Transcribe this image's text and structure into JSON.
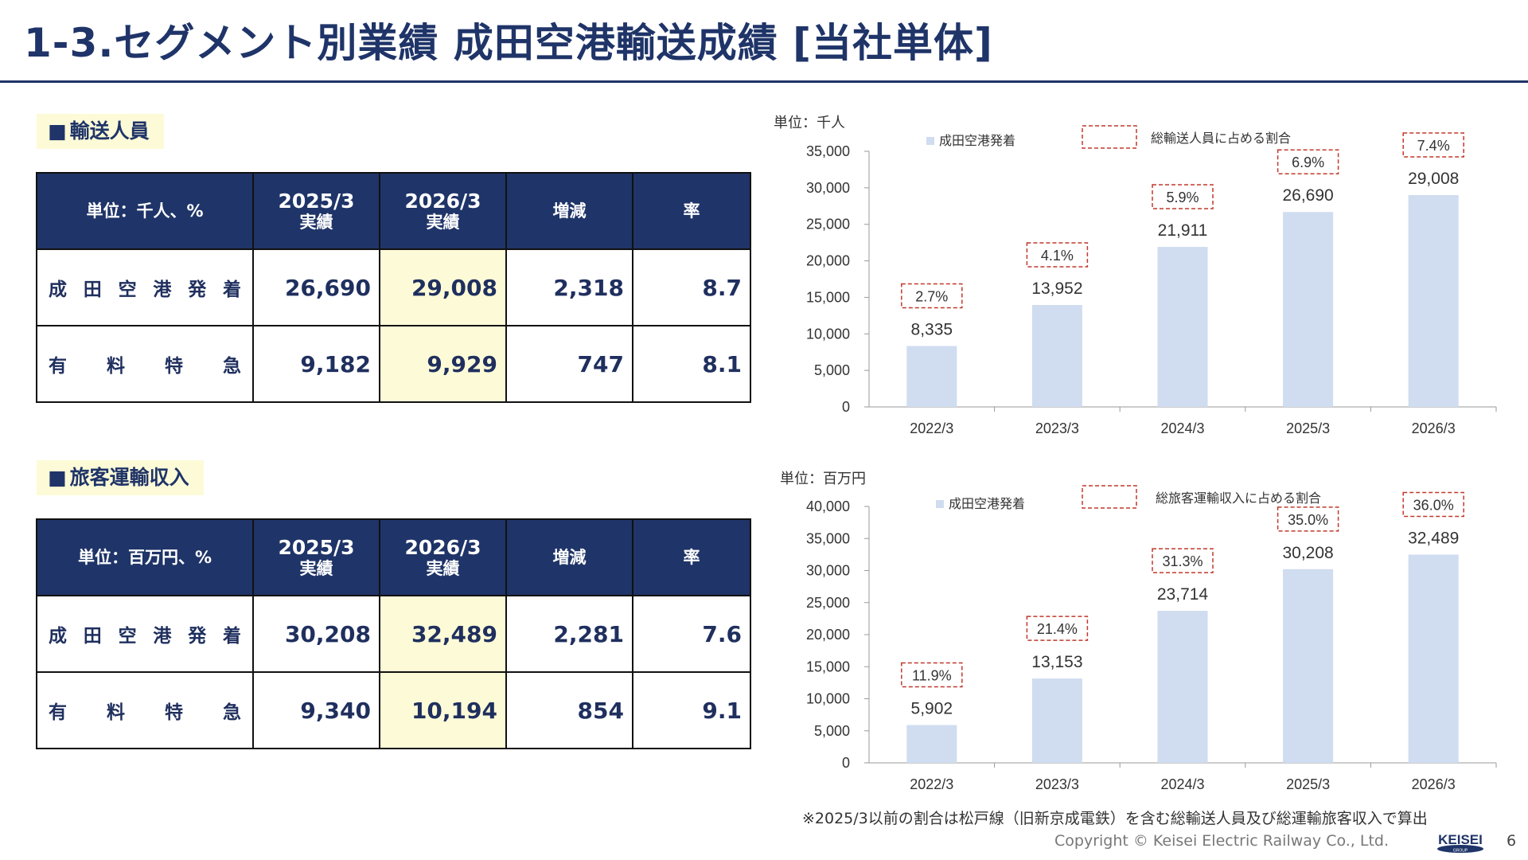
{
  "header": {
    "title": "1-3.セグメント別業績 成田空港輸送成績 [当社単体]"
  },
  "section1": {
    "label": "輸送人員",
    "table": {
      "unit": "単位：千人、%",
      "col_2025_year": "2025/3",
      "col_2025_sub": "実績",
      "col_2026_year": "2026/3",
      "col_2026_sub": "実績",
      "col_change": "増減",
      "col_rate": "率",
      "rows": [
        {
          "label": "成田空港発着",
          "v2025": "26,690",
          "v2026": "29,008",
          "change": "2,318",
          "rate": "8.7"
        },
        {
          "label": "有料特急",
          "v2025": "9,182",
          "v2026": "9,929",
          "change": "747",
          "rate": "8.1"
        }
      ]
    }
  },
  "section2": {
    "label": "旅客運輸収入",
    "table": {
      "unit": "単位：百万円、%",
      "col_2025_year": "2025/3",
      "col_2025_sub": "実績",
      "col_2026_year": "2026/3",
      "col_2026_sub": "実績",
      "col_change": "増減",
      "col_rate": "率",
      "rows": [
        {
          "label": "成田空港発着",
          "v2025": "30,208",
          "v2026": "32,489",
          "change": "2,281",
          "rate": "7.6"
        },
        {
          "label": "有料特急",
          "v2025": "9,340",
          "v2026": "10,194",
          "change": "854",
          "rate": "9.1"
        }
      ]
    }
  },
  "chart_data": [
    {
      "type": "bar",
      "unit_label": "単位：千人",
      "categories": [
        "2022/3",
        "2023/3",
        "2024/3",
        "2025/3",
        "2026/3"
      ],
      "series": [
        {
          "name": "成田空港発着",
          "values": [
            8335,
            13952,
            21911,
            26690,
            29008
          ]
        }
      ],
      "value_labels": [
        "8,335",
        "13,952",
        "21,911",
        "26,690",
        "29,008"
      ],
      "share_name": "総輸送人員に占める割合",
      "share_labels": [
        "2.7%",
        "4.1%",
        "5.9%",
        "6.9%",
        "7.4%"
      ],
      "ylim": [
        0,
        35000
      ],
      "ytick_labels": [
        "0",
        "5,000",
        "10,000",
        "15,000",
        "20,000",
        "25,000",
        "30,000",
        "35,000"
      ],
      "legend_position": "top",
      "bar_color": "#d0dcf0"
    },
    {
      "type": "bar",
      "unit_label": "単位：百万円",
      "categories": [
        "2022/3",
        "2023/3",
        "2024/3",
        "2025/3",
        "2026/3"
      ],
      "series": [
        {
          "name": "成田空港発着",
          "values": [
            5902,
            13153,
            23714,
            30208,
            32489
          ]
        }
      ],
      "value_labels": [
        "5,902",
        "13,153",
        "23,714",
        "30,208",
        "32,489"
      ],
      "share_name": "総旅客運輸収入に占める割合",
      "share_labels": [
        "11.9%",
        "21.4%",
        "31.3%",
        "35.0%",
        "36.0%"
      ],
      "ylim": [
        0,
        40000
      ],
      "ytick_labels": [
        "0",
        "5,000",
        "10,000",
        "15,000",
        "20,000",
        "25,000",
        "30,000",
        "35,000",
        "40,000"
      ],
      "legend_position": "top",
      "bar_color": "#d0dcf0"
    }
  ],
  "footnote": "※2025/3以前の割合は松戸線（旧新京成電鉄）を含む総輸送人員及び総運輸旅客収入で算出",
  "footer": {
    "copyright": "Copyright ©  Keisei Electric Railway Co., Ltd.",
    "logo_text": "KEISEI",
    "logo_sub": "GROUP",
    "page_number": "6"
  },
  "colors": {
    "navy": "#1f3468",
    "highlight": "#fdfbd7",
    "bar": "#d0dcf0",
    "share_box": "#c0392b"
  }
}
